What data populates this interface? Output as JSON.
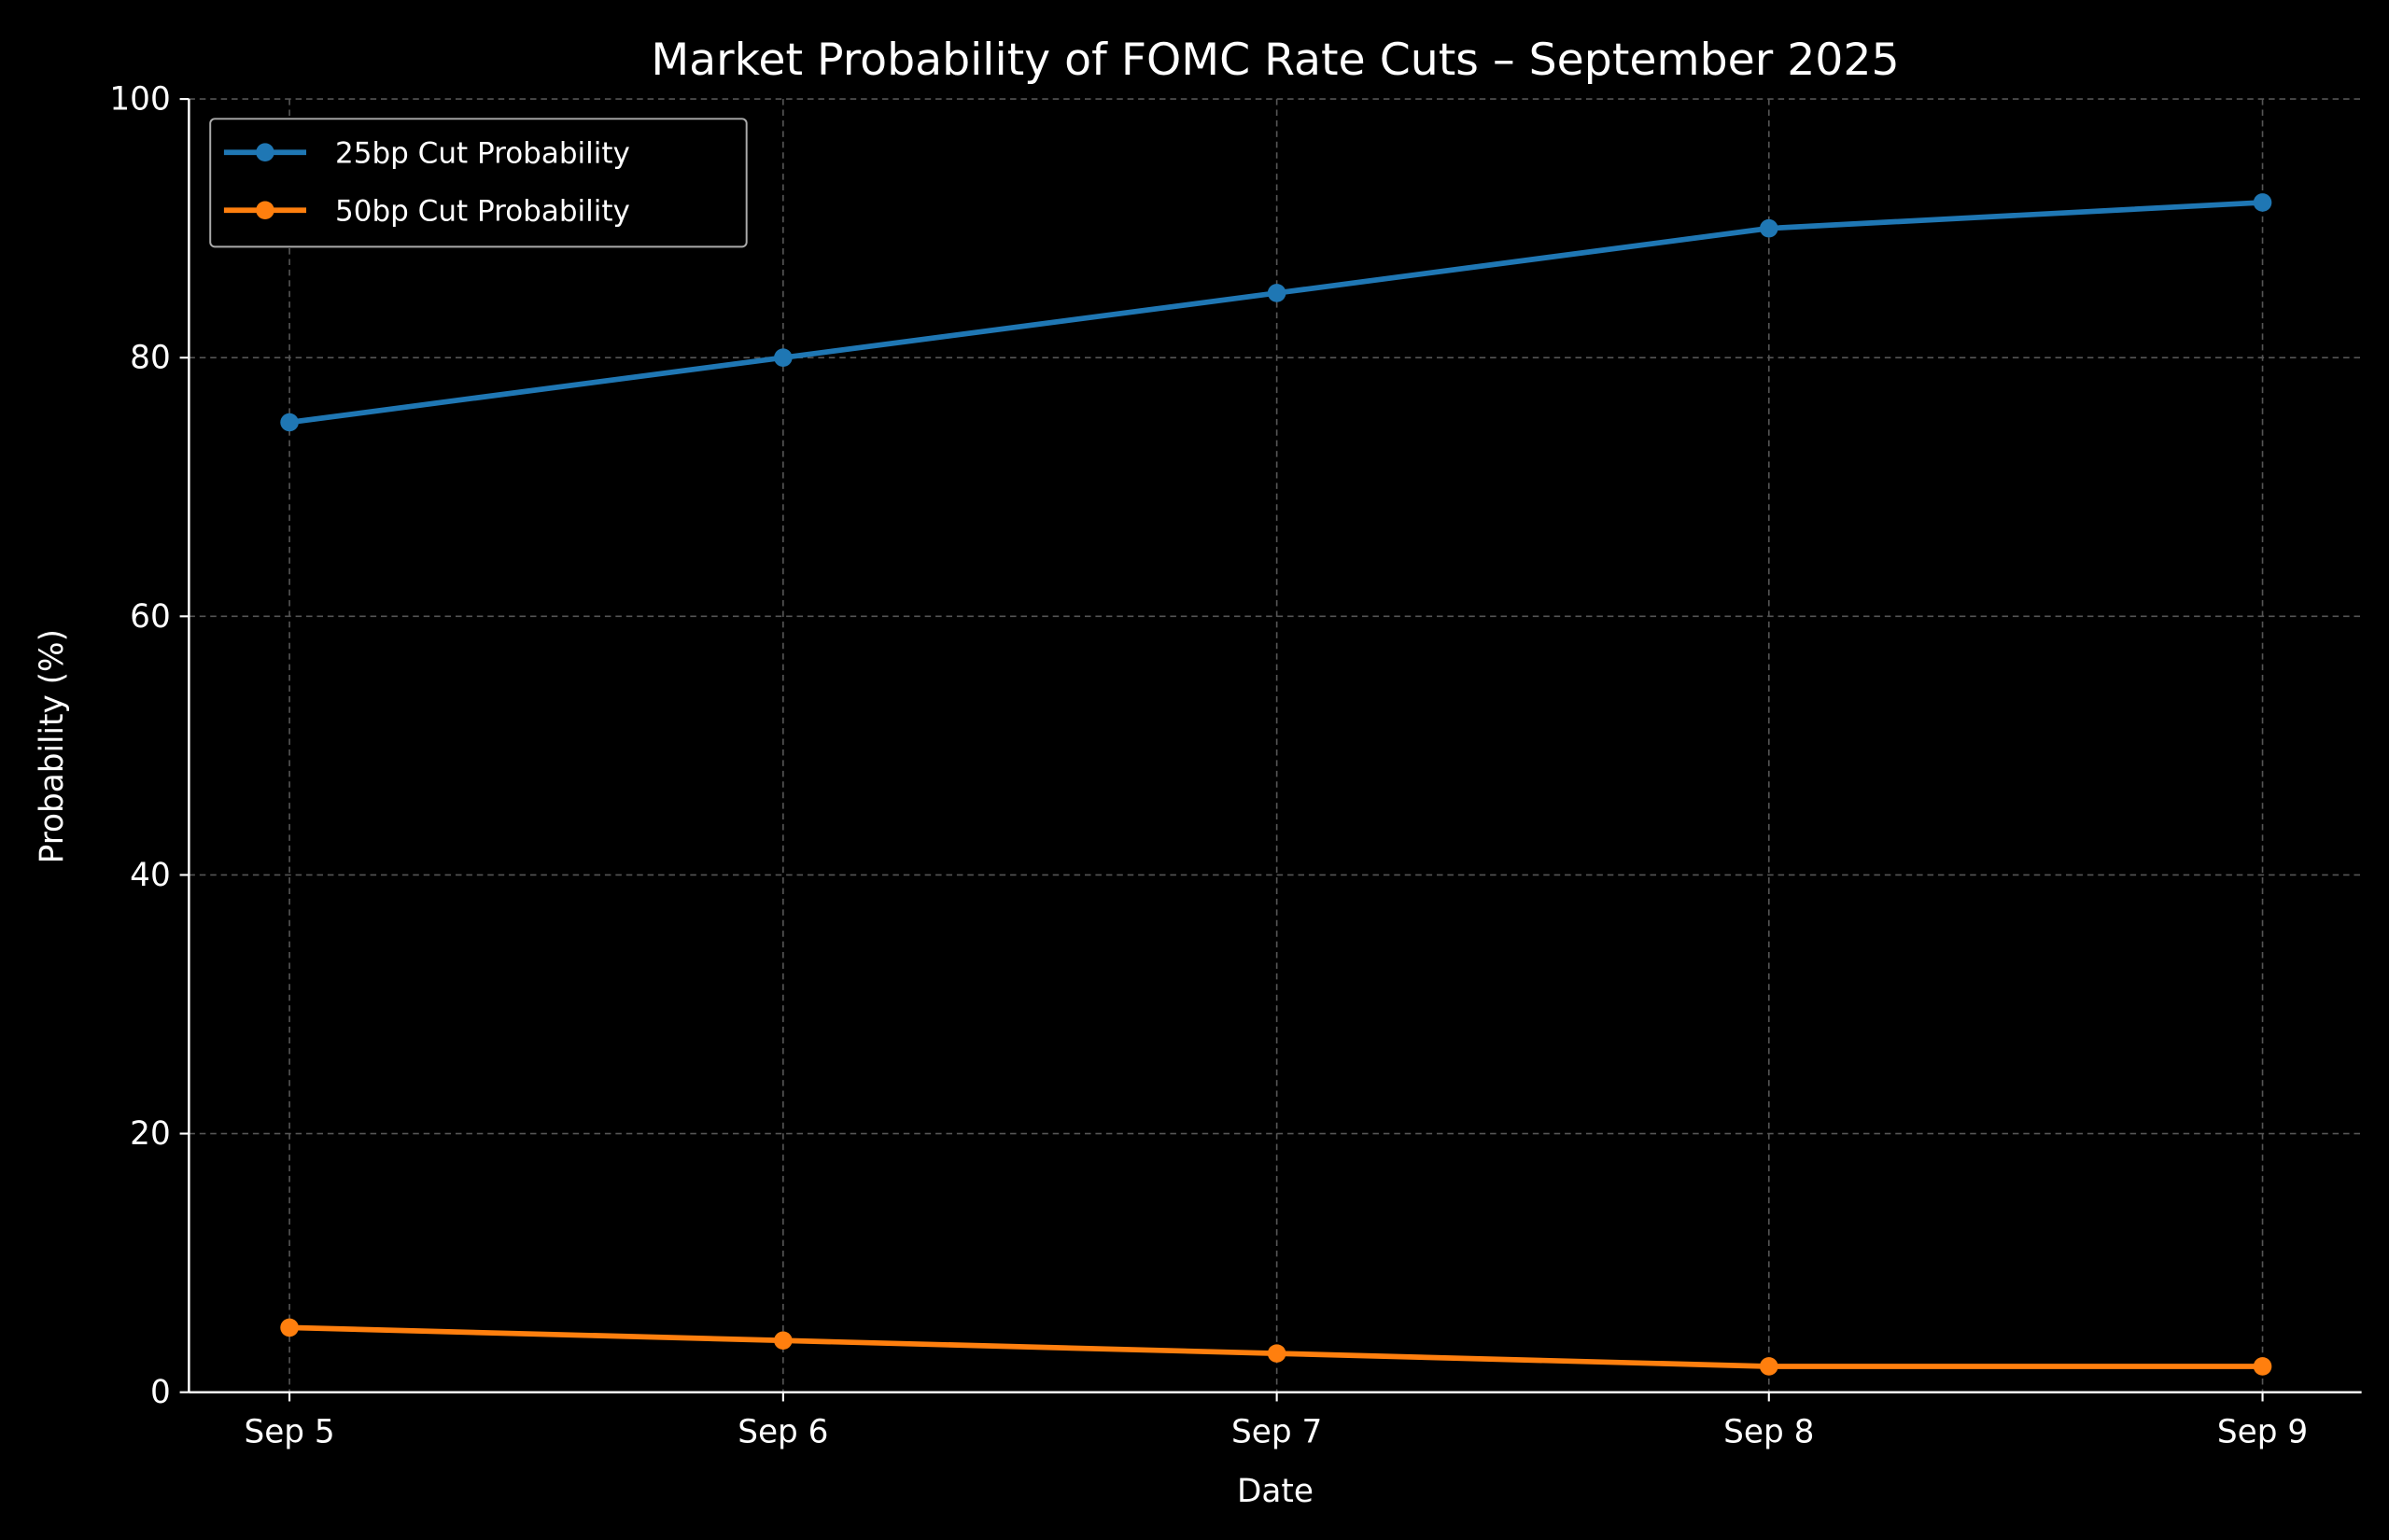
{
  "chart_data": {
    "type": "line",
    "title": "Market Probability of FOMC Rate Cuts – September 2025",
    "xlabel": "Date",
    "ylabel": "Probability (%)",
    "categories": [
      "Sep 5",
      "Sep 6",
      "Sep 7",
      "Sep 8",
      "Sep 9"
    ],
    "ylim": [
      0,
      100
    ],
    "yticks": [
      0,
      20,
      40,
      60,
      80,
      100
    ],
    "grid": true,
    "legend_position": "top-left",
    "background": "#000000",
    "series": [
      {
        "name": "25bp Cut Probability",
        "values": [
          75,
          80,
          85,
          90,
          92
        ],
        "color": "#1f77b4",
        "marker": "circle"
      },
      {
        "name": "50bp Cut Probability",
        "values": [
          5,
          4,
          3,
          2,
          2
        ],
        "color": "#ff7f0e",
        "marker": "circle"
      }
    ]
  }
}
